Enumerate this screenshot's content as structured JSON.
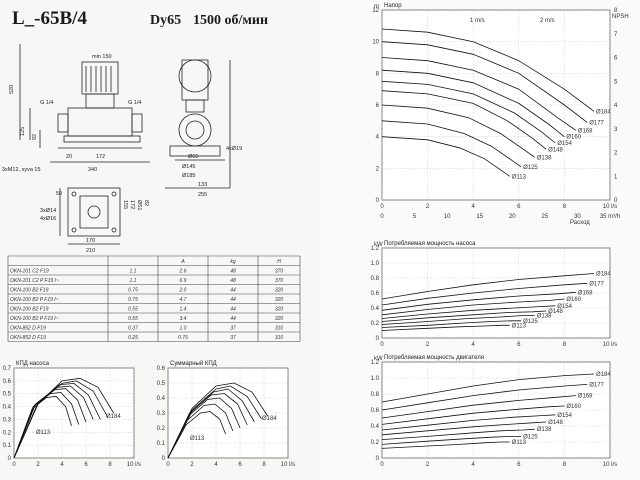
{
  "header": {
    "model": "L_-65B/4",
    "dn": "Dy65",
    "speed": "1500 об/мин"
  },
  "dimensions": [
    "min 150",
    "520",
    "G 1/4",
    "G 1/4",
    "125",
    "92",
    "20",
    "172",
    "340",
    "3xM12, syva 15",
    "4xØ19",
    "Ø65",
    "Ø145",
    "Ø185",
    "133",
    "255",
    "50",
    "3xØ14",
    "4xØ16",
    "155",
    "172",
    "Ø51",
    "82",
    "170",
    "210"
  ],
  "table": {
    "columns": [
      "",
      "A",
      "kg",
      "H"
    ],
    "rows": [
      {
        "model": "OKN-101 C2 F19",
        "p": "1.1",
        "a": "2.6",
        "kg": "48",
        "h": "370"
      },
      {
        "model": "OKN-101 C2 P F19 I~",
        "p": "1.1",
        "a": "6.9",
        "kg": "48",
        "h": "370"
      },
      {
        "model": "OKN-100 B2 F19",
        "p": "0.75",
        "a": "2.0",
        "kg": "44",
        "h": "320"
      },
      {
        "model": "OKN-100 B2 P F19 I~",
        "p": "0.75",
        "a": "4.7",
        "kg": "44",
        "h": "320"
      },
      {
        "model": "OKN-100 B2 F19",
        "p": "0.55",
        "a": "1.4",
        "kg": "44",
        "h": "320"
      },
      {
        "model": "OKN-100 B2 P F19 I~",
        "p": "0.55",
        "a": "3.4",
        "kg": "44",
        "h": "320"
      },
      {
        "model": "OKN-852 D F19",
        "p": "0.37",
        "a": "1.0",
        "kg": "37",
        "h": "310"
      },
      {
        "model": "OKN-852 D F19",
        "p": "0.25",
        "a": "0.75",
        "kg": "37",
        "h": "310"
      }
    ]
  },
  "chart_data": [
    {
      "type": "line",
      "title": "КПД насоса",
      "xunit": "l/s",
      "xlim": [
        0,
        10
      ],
      "ylim": [
        0,
        0.7
      ],
      "xticks": [
        "0",
        "2",
        "4",
        "6",
        "8",
        "10 l/s"
      ],
      "yticks": [
        "0",
        "0.1",
        "0.2",
        "0.3",
        "0.4",
        "0.5",
        "0.6",
        "0.7"
      ],
      "labels": [
        "Ø184",
        "Ø113"
      ],
      "series": [
        {
          "name": "Ø184",
          "x": [
            0,
            2,
            4,
            5.5,
            7,
            8.3
          ],
          "y": [
            0,
            0.42,
            0.6,
            0.62,
            0.55,
            0.35
          ]
        },
        {
          "name": "",
          "x": [
            0,
            2,
            4,
            5.2,
            6.6,
            7.8
          ],
          "y": [
            0,
            0.42,
            0.58,
            0.6,
            0.52,
            0.32
          ]
        },
        {
          "name": "",
          "x": [
            0,
            2,
            3.8,
            5,
            6.2,
            7.2
          ],
          "y": [
            0,
            0.43,
            0.57,
            0.58,
            0.49,
            0.3
          ]
        },
        {
          "name": "",
          "x": [
            0,
            1.8,
            3.6,
            4.7,
            5.8,
            6.6
          ],
          "y": [
            0,
            0.42,
            0.55,
            0.56,
            0.47,
            0.3
          ]
        },
        {
          "name": "",
          "x": [
            0,
            1.7,
            3.3,
            4.3,
            5.3,
            6
          ],
          "y": [
            0,
            0.41,
            0.53,
            0.54,
            0.45,
            0.28
          ]
        },
        {
          "name": "",
          "x": [
            0,
            1.6,
            3,
            3.9,
            4.8,
            5.4
          ],
          "y": [
            0,
            0.4,
            0.5,
            0.51,
            0.42,
            0.26
          ]
        },
        {
          "name": "Ø113",
          "x": [
            0,
            1.5,
            2.7,
            3.5,
            4.3,
            4.8
          ],
          "y": [
            0,
            0.38,
            0.47,
            0.48,
            0.4,
            0.25
          ]
        }
      ]
    },
    {
      "type": "line",
      "title": "Суммарный КПД",
      "xunit": "l/s",
      "xlim": [
        0,
        10
      ],
      "ylim": [
        0,
        0.6
      ],
      "xticks": [
        "0",
        "2",
        "4",
        "6",
        "8",
        "10 l/s"
      ],
      "yticks": [
        "0",
        "0.1",
        "0.2",
        "0.3",
        "0.4",
        "0.5",
        "0.6"
      ],
      "labels": [
        "Ø184",
        "Ø113"
      ],
      "series": [
        {
          "name": "Ø184",
          "x": [
            0,
            2,
            4,
            5.5,
            7,
            8.3
          ],
          "y": [
            0,
            0.33,
            0.48,
            0.5,
            0.44,
            0.28
          ]
        },
        {
          "name": "",
          "x": [
            0,
            2,
            4,
            5.2,
            6.6,
            7.8
          ],
          "y": [
            0,
            0.32,
            0.46,
            0.48,
            0.41,
            0.26
          ]
        },
        {
          "name": "",
          "x": [
            0,
            2,
            3.8,
            5,
            6.2,
            7.2
          ],
          "y": [
            0,
            0.31,
            0.44,
            0.46,
            0.38,
            0.24
          ]
        },
        {
          "name": "",
          "x": [
            0,
            1.8,
            3.6,
            4.7,
            5.8,
            6.6
          ],
          "y": [
            0,
            0.3,
            0.42,
            0.43,
            0.36,
            0.22
          ]
        },
        {
          "name": "",
          "x": [
            0,
            1.7,
            3.3,
            4.3,
            5.3,
            6
          ],
          "y": [
            0,
            0.28,
            0.39,
            0.4,
            0.33,
            0.2
          ]
        },
        {
          "name": "",
          "x": [
            0,
            1.6,
            3,
            3.9,
            4.8,
            5.4
          ],
          "y": [
            0,
            0.25,
            0.35,
            0.36,
            0.3,
            0.18
          ]
        },
        {
          "name": "Ø113",
          "x": [
            0,
            1.5,
            2.7,
            3.5,
            4.3,
            4.8
          ],
          "y": [
            0,
            0.22,
            0.3,
            0.31,
            0.26,
            0.16
          ]
        }
      ]
    },
    {
      "type": "line",
      "title": "Напор",
      "ylabel": "m",
      "y2label": "NPSH",
      "xlabel": "Расход",
      "xlim": [
        0,
        10
      ],
      "ylim": [
        0,
        12
      ],
      "xticks": [
        "0",
        "2",
        "4",
        "6",
        "8",
        "10 l/s"
      ],
      "x2ticks": [
        "0",
        "5",
        "10",
        "15",
        "20",
        "25",
        "30",
        "35 m³/h"
      ],
      "yticks": [
        "0",
        "2",
        "4",
        "6",
        "8",
        "10",
        "12"
      ],
      "y2ticks": [
        "0",
        "1",
        "2",
        "3",
        "4",
        "5",
        "6",
        "7",
        "8"
      ],
      "annotations": [
        "1 m/s",
        "2 m/s"
      ],
      "curve_labels": [
        "Ø184",
        "Ø177",
        "Ø168",
        "Ø160",
        "Ø154",
        "Ø148",
        "Ø138",
        "Ø125",
        "Ø113"
      ],
      "series": [
        {
          "name": "Ø184",
          "x": [
            0,
            2,
            4,
            6,
            8,
            9.3
          ],
          "y": [
            10.8,
            10.6,
            10,
            8.8,
            7,
            5.6
          ]
        },
        {
          "name": "Ø177",
          "x": [
            0,
            2,
            4,
            6,
            8,
            9
          ],
          "y": [
            10,
            9.8,
            9.2,
            8,
            6,
            4.9
          ]
        },
        {
          "name": "Ø168",
          "x": [
            0,
            2,
            4,
            6,
            7.7,
            8.5
          ],
          "y": [
            9,
            8.8,
            8.2,
            7,
            5.2,
            4.4
          ]
        },
        {
          "name": "Ø160",
          "x": [
            0,
            2,
            4,
            6,
            7.3,
            8
          ],
          "y": [
            8.2,
            8,
            7.4,
            6.1,
            4.8,
            4
          ]
        },
        {
          "name": "Ø154",
          "x": [
            0,
            2,
            4,
            5.8,
            7,
            7.6
          ],
          "y": [
            7.5,
            7.3,
            6.7,
            5.5,
            4.3,
            3.6
          ]
        },
        {
          "name": "Ø148",
          "x": [
            0,
            2,
            4,
            5.5,
            6.6,
            7.2
          ],
          "y": [
            6.9,
            6.7,
            6.1,
            5,
            3.9,
            3.2
          ]
        },
        {
          "name": "Ø138",
          "x": [
            0,
            2,
            3.8,
            5.2,
            6.2,
            6.7
          ],
          "y": [
            6,
            5.8,
            5.2,
            4.2,
            3.2,
            2.7
          ]
        },
        {
          "name": "Ø125",
          "x": [
            0,
            2,
            3.6,
            4.8,
            5.7,
            6.1
          ],
          "y": [
            5,
            4.8,
            4.2,
            3.4,
            2.5,
            2.1
          ]
        },
        {
          "name": "Ø113",
          "x": [
            0,
            2,
            3.4,
            4.5,
            5.2,
            5.6
          ],
          "y": [
            4,
            3.8,
            3.3,
            2.6,
            1.9,
            1.5
          ]
        }
      ]
    },
    {
      "type": "line",
      "title": "Потребляемая мощность насоса",
      "ylabel": "kW",
      "xlim": [
        0,
        10
      ],
      "ylim": [
        0,
        1.2
      ],
      "xticks": [
        "0",
        "2",
        "4",
        "6",
        "8",
        "10 l/s"
      ],
      "yticks": [
        "0",
        "0.2",
        "0.4",
        "0.6",
        "0.8",
        "1.0",
        "1.2"
      ],
      "series": [
        {
          "name": "Ø184",
          "x": [
            0,
            2,
            4,
            6,
            8,
            9.3
          ],
          "y": [
            0.52,
            0.62,
            0.71,
            0.78,
            0.83,
            0.86
          ]
        },
        {
          "name": "Ø177",
          "x": [
            0,
            2,
            4,
            6,
            8,
            9
          ],
          "y": [
            0.44,
            0.53,
            0.6,
            0.66,
            0.71,
            0.73
          ]
        },
        {
          "name": "Ø168",
          "x": [
            0,
            2,
            4,
            6,
            7.7,
            8.5
          ],
          "y": [
            0.37,
            0.45,
            0.51,
            0.56,
            0.59,
            0.61
          ]
        },
        {
          "name": "Ø160",
          "x": [
            0,
            2,
            4,
            6,
            7.3,
            8
          ],
          "y": [
            0.31,
            0.38,
            0.44,
            0.48,
            0.5,
            0.52
          ]
        },
        {
          "name": "Ø154",
          "x": [
            0,
            2,
            4,
            5.8,
            7,
            7.6
          ],
          "y": [
            0.26,
            0.32,
            0.37,
            0.4,
            0.42,
            0.43
          ]
        },
        {
          "name": "Ø148",
          "x": [
            0,
            2,
            4,
            5.5,
            6.6,
            7.2
          ],
          "y": [
            0.22,
            0.27,
            0.31,
            0.34,
            0.35,
            0.36
          ]
        },
        {
          "name": "Ø138",
          "x": [
            0,
            2,
            3.8,
            5.2,
            6.2,
            6.7
          ],
          "y": [
            0.18,
            0.22,
            0.26,
            0.28,
            0.3,
            0.3
          ]
        },
        {
          "name": "Ø125",
          "x": [
            0,
            2,
            3.6,
            4.8,
            5.7,
            6.1
          ],
          "y": [
            0.14,
            0.17,
            0.2,
            0.22,
            0.23,
            0.23
          ]
        },
        {
          "name": "Ø113",
          "x": [
            0,
            2,
            3.4,
            4.5,
            5.2,
            5.6
          ],
          "y": [
            0.1,
            0.13,
            0.15,
            0.16,
            0.17,
            0.17
          ]
        }
      ]
    },
    {
      "type": "line",
      "title": "Потребляемая мощность двигателя",
      "ylabel": "kW",
      "xlim": [
        0,
        10
      ],
      "ylim": [
        0,
        1.2
      ],
      "xticks": [
        "0",
        "2",
        "4",
        "6",
        "8",
        "10 l/s"
      ],
      "yticks": [
        "0",
        "0.2",
        "0.4",
        "0.6",
        "0.8",
        "1.0",
        "1.2"
      ],
      "series": [
        {
          "name": "Ø184",
          "x": [
            0,
            2,
            4,
            6,
            8,
            9.3
          ],
          "y": [
            0.7,
            0.8,
            0.9,
            0.98,
            1.03,
            1.05
          ]
        },
        {
          "name": "Ø177",
          "x": [
            0,
            2,
            4,
            6,
            8,
            9
          ],
          "y": [
            0.6,
            0.69,
            0.78,
            0.85,
            0.9,
            0.92
          ]
        },
        {
          "name": "Ø168",
          "x": [
            0,
            2,
            4,
            6,
            7.7,
            8.5
          ],
          "y": [
            0.5,
            0.58,
            0.66,
            0.72,
            0.76,
            0.78
          ]
        },
        {
          "name": "Ø160",
          "x": [
            0,
            2,
            4,
            6,
            7.3,
            8
          ],
          "y": [
            0.42,
            0.49,
            0.56,
            0.61,
            0.64,
            0.65
          ]
        },
        {
          "name": "Ø154",
          "x": [
            0,
            2,
            4,
            5.8,
            7,
            7.6
          ],
          "y": [
            0.35,
            0.41,
            0.47,
            0.51,
            0.53,
            0.54
          ]
        },
        {
          "name": "Ø148",
          "x": [
            0,
            2,
            4,
            5.5,
            6.6,
            7.2
          ],
          "y": [
            0.29,
            0.34,
            0.39,
            0.42,
            0.44,
            0.45
          ]
        },
        {
          "name": "Ø138",
          "x": [
            0,
            2,
            3.8,
            5.2,
            6.2,
            6.7
          ],
          "y": [
            0.23,
            0.27,
            0.31,
            0.34,
            0.35,
            0.36
          ]
        },
        {
          "name": "Ø125",
          "x": [
            0,
            2,
            3.6,
            4.8,
            5.7,
            6.1
          ],
          "y": [
            0.17,
            0.21,
            0.24,
            0.26,
            0.27,
            0.27
          ]
        },
        {
          "name": "Ø113",
          "x": [
            0,
            2,
            3.4,
            4.5,
            5.2,
            5.6
          ],
          "y": [
            0.12,
            0.15,
            0.17,
            0.19,
            0.2,
            0.2
          ]
        }
      ]
    }
  ]
}
